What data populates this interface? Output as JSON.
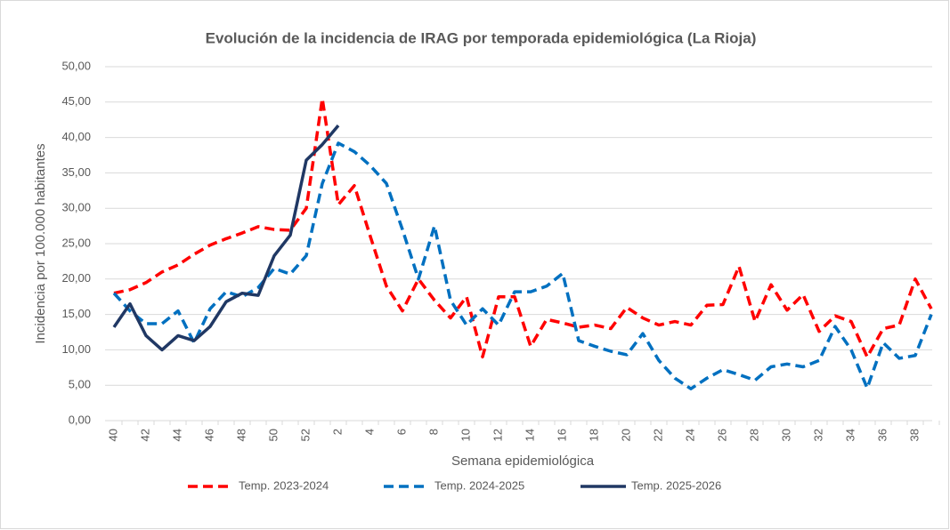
{
  "chart_data": {
    "type": "line",
    "title": "Evolución de la incidencia de IRAG por temporada epidemiológica (La Rioja)",
    "x_label": "Semana epidemiológica",
    "y_label": "Incidencia por 100.000 habitantes",
    "categories": [
      "40",
      null,
      "42",
      null,
      "44",
      null,
      "46",
      null,
      "48",
      null,
      "50",
      null,
      "52",
      null,
      "2",
      null,
      "4",
      null,
      "6",
      null,
      "8",
      null,
      "10",
      null,
      "12",
      null,
      "14",
      null,
      "16",
      null,
      "18",
      null,
      "20",
      null,
      "22",
      null,
      "24",
      null,
      "26",
      null,
      "28",
      null,
      "30",
      null,
      "32",
      null,
      "34",
      null,
      "36",
      null,
      "38",
      null
    ],
    "ylim": [
      0,
      50
    ],
    "yticks": [
      {
        "value": 0,
        "label": "0,00"
      },
      {
        "value": 5,
        "label": "5,00"
      },
      {
        "value": 10,
        "label": "10,00"
      },
      {
        "value": 15,
        "label": "15,00"
      },
      {
        "value": 20,
        "label": "20,00"
      },
      {
        "value": 25,
        "label": "25,00"
      },
      {
        "value": 30,
        "label": "30,00"
      },
      {
        "value": 35,
        "label": "35,00"
      },
      {
        "value": 40,
        "label": "40,00"
      },
      {
        "value": 45,
        "label": "45,00"
      },
      {
        "value": 50,
        "label": "50,00"
      }
    ],
    "grid": true,
    "legend": "bottom",
    "series": [
      {
        "name": "Temp. 2023-2024",
        "color": "#ff0000",
        "style": "dashed",
        "values": [
          18.0,
          18.5,
          19.5,
          21,
          22,
          23.5,
          24.8,
          25.7,
          26.5,
          27.4,
          27.0,
          26.9,
          30.0,
          45.5,
          30.5,
          33.2,
          26,
          19,
          15.5,
          20,
          17,
          14.5,
          17.5,
          9.0,
          17.5,
          17.5,
          10.5,
          14.3,
          13.8,
          13.2,
          13.5,
          13.0,
          16.0,
          14.5,
          13.5,
          14.0,
          13.5,
          16.3,
          16.4,
          21.8,
          14.0,
          19.2,
          15.6,
          17.8,
          12.6,
          14.8,
          14.0,
          9.0,
          13.0,
          13.5,
          20.0,
          15.8
        ]
      },
      {
        "name": "Temp. 2024-2025",
        "color": "#0070c0",
        "style": "dashed",
        "values": [
          18.0,
          15.5,
          13.7,
          13.7,
          15.5,
          11.0,
          15.8,
          18.2,
          17.5,
          18.8,
          21.5,
          20.7,
          23.3,
          33.5,
          39.2,
          38.0,
          36.0,
          33.5,
          27.0,
          20.0,
          27.5,
          17.0,
          13.5,
          15.8,
          13.5,
          18.2,
          18.2,
          19.0,
          20.8,
          11.3,
          10.5,
          9.8,
          9.3,
          12.3,
          8.5,
          6.0,
          4.5,
          6.0,
          7.2,
          6.5,
          5.7,
          7.6,
          8.0,
          7.6,
          8.5,
          13.3,
          10.0,
          4.6,
          11.0,
          8.8,
          9.2,
          15.0
        ]
      },
      {
        "name": "Temp. 2025-2026",
        "color": "#203864",
        "style": "solid",
        "values": [
          13.2,
          16.5,
          12.0,
          10.0,
          12.0,
          11.3,
          13.3,
          16.8,
          18.0,
          17.7,
          23.3,
          26.2,
          36.8,
          39.0,
          41.7,
          null,
          null,
          null,
          null,
          null,
          null,
          null,
          null,
          null,
          null,
          null,
          null,
          null,
          null,
          null,
          null,
          null,
          null,
          null,
          null,
          null,
          null,
          null,
          null,
          null,
          null,
          null,
          null,
          null,
          null,
          null,
          null,
          null,
          null,
          null,
          null,
          null
        ]
      }
    ]
  }
}
